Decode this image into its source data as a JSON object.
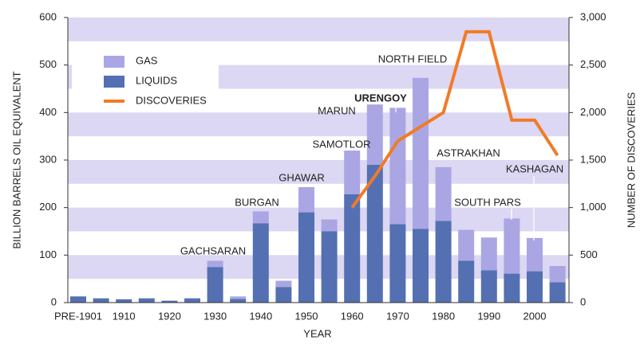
{
  "chart_data": {
    "type": "bar",
    "xlabel": "YEAR",
    "ylabel": "BILLION BARRELS OIL EQUIVALENT",
    "y2label": "NUMBER OF DISCOVERIES",
    "categories": [
      "PRE-1901",
      null,
      "1910",
      null,
      "1920",
      null,
      "1930",
      null,
      "1940",
      null,
      "1950",
      null,
      "1960",
      null,
      "1970",
      null,
      "1980",
      null,
      "1990",
      null,
      "2000",
      null
    ],
    "series": [
      {
        "name": "GAS",
        "type": "bar",
        "color": "#aaa6e4",
        "values": [
          0,
          0,
          0,
          0,
          0,
          0,
          13,
          5,
          25,
          13,
          53,
          25,
          92,
          127,
          245,
          318,
          113,
          65,
          69,
          116,
          70,
          34
        ]
      },
      {
        "name": "LIQUIDS",
        "type": "bar",
        "color": "#5470b2",
        "values": [
          13,
          9,
          7,
          9,
          4,
          9,
          75,
          8,
          167,
          33,
          190,
          150,
          228,
          290,
          165,
          155,
          172,
          88,
          68,
          61,
          66,
          43
        ]
      },
      {
        "name": "DISCOVERIES",
        "type": "line",
        "axis": "y2",
        "color": "#f07b28",
        "values": [
          null,
          null,
          null,
          null,
          null,
          null,
          null,
          null,
          null,
          null,
          null,
          null,
          1000,
          1330,
          1700,
          1850,
          2000,
          2850,
          2850,
          1920,
          1920,
          1550
        ]
      }
    ],
    "ylim": [
      0,
      600
    ],
    "yticks": [
      0,
      100,
      200,
      300,
      400,
      500,
      600
    ],
    "y2lim": [
      0,
      3000
    ],
    "y2ticks": [
      0,
      500,
      {
        "value": 1000,
        "label": "1,000"
      },
      {
        "value": 1500,
        "label": "1,500"
      },
      {
        "value": 2000,
        "label": "2,000"
      },
      {
        "value": 2500,
        "label": "2,500"
      },
      {
        "value": 3000,
        "label": "3,000"
      }
    ],
    "annotations": [
      "GACHSARAN",
      "BURGAN",
      "GHAWAR",
      "SAMOTLOR",
      "MARUN",
      "URENGOY",
      "NORTH FIELD",
      "ASTRAKHAN",
      "SOUTH PARS",
      "KASHAGAN"
    ]
  }
}
